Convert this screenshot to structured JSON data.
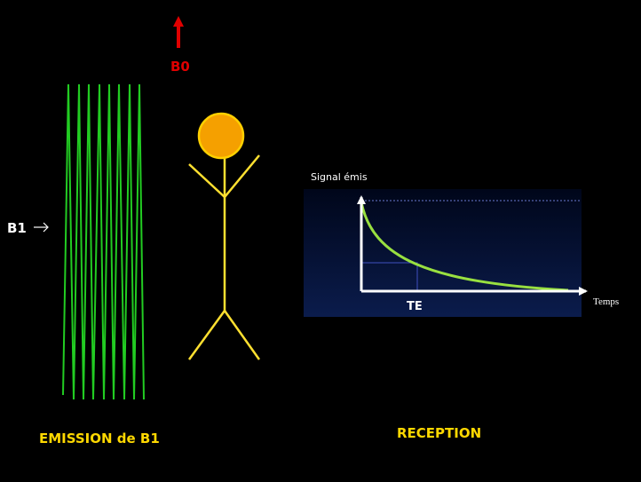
{
  "labels": {
    "b0": "B0",
    "b1": "B1",
    "emission": "EMISSION de B1",
    "reception": "RECEPTION"
  },
  "graph": {
    "y_axis": "Signal émis",
    "x_axis": "Temps",
    "te": "TE"
  }
}
